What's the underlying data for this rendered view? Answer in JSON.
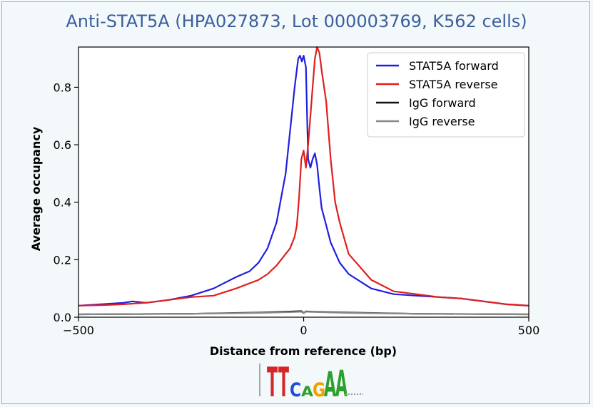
{
  "chart_data": {
    "type": "line",
    "title": "Anti-STAT5A (HPA027873, Lot 000003769, K562 cells)",
    "xlabel": "Distance from reference (bp)",
    "ylabel": "Average occupancy",
    "xlim": [
      -500,
      500
    ],
    "ylim": [
      0,
      0.94
    ],
    "xticks": [
      -500,
      0,
      500
    ],
    "yticks": [
      0.0,
      0.2,
      0.4,
      0.6,
      0.8
    ],
    "xtick_labels": [
      "−500",
      "0",
      "500"
    ],
    "ytick_labels": [
      "0.0",
      "0.2",
      "0.4",
      "0.6",
      "0.8"
    ],
    "grid": false,
    "legend_position": "top-right",
    "series": [
      {
        "name": "STAT5A forward",
        "color": "#1f1fe0",
        "x": [
          -500,
          -450,
          -400,
          -380,
          -350,
          -300,
          -250,
          -200,
          -150,
          -120,
          -100,
          -80,
          -60,
          -40,
          -30,
          -20,
          -12,
          -8,
          -4,
          0,
          5,
          10,
          15,
          20,
          25,
          30,
          35,
          40,
          50,
          60,
          80,
          100,
          130,
          150,
          200,
          250,
          300,
          350,
          400,
          450,
          500
        ],
        "y": [
          0.04,
          0.045,
          0.05,
          0.055,
          0.05,
          0.06,
          0.075,
          0.1,
          0.14,
          0.16,
          0.19,
          0.24,
          0.33,
          0.5,
          0.65,
          0.8,
          0.9,
          0.91,
          0.89,
          0.91,
          0.87,
          0.55,
          0.52,
          0.55,
          0.57,
          0.53,
          0.45,
          0.38,
          0.32,
          0.26,
          0.19,
          0.15,
          0.12,
          0.1,
          0.08,
          0.075,
          0.07,
          0.065,
          0.055,
          0.045,
          0.04
        ]
      },
      {
        "name": "STAT5A reverse",
        "color": "#e01f1f",
        "x": [
          -500,
          -450,
          -400,
          -350,
          -300,
          -250,
          -200,
          -150,
          -100,
          -80,
          -60,
          -40,
          -30,
          -20,
          -15,
          -10,
          -5,
          0,
          5,
          10,
          15,
          20,
          25,
          30,
          35,
          40,
          50,
          60,
          70,
          80,
          100,
          150,
          200,
          250,
          300,
          350,
          400,
          450,
          500
        ],
        "y": [
          0.04,
          0.042,
          0.045,
          0.05,
          0.06,
          0.07,
          0.075,
          0.1,
          0.13,
          0.15,
          0.18,
          0.22,
          0.24,
          0.28,
          0.32,
          0.42,
          0.55,
          0.58,
          0.52,
          0.6,
          0.7,
          0.8,
          0.9,
          0.94,
          0.92,
          0.86,
          0.75,
          0.55,
          0.4,
          0.33,
          0.22,
          0.13,
          0.09,
          0.08,
          0.07,
          0.065,
          0.055,
          0.045,
          0.04
        ]
      },
      {
        "name": "IgG forward",
        "color": "#111111",
        "x": [
          -500,
          -250,
          -100,
          -20,
          -5,
          0,
          5,
          20,
          100,
          250,
          500
        ],
        "y": [
          0.01,
          0.012,
          0.016,
          0.02,
          0.021,
          0.015,
          0.02,
          0.019,
          0.016,
          0.012,
          0.01
        ]
      },
      {
        "name": "IgG reverse",
        "color": "#888888",
        "x": [
          -500,
          -250,
          -100,
          -20,
          -5,
          0,
          5,
          20,
          100,
          250,
          500
        ],
        "y": [
          0.01,
          0.012,
          0.015,
          0.018,
          0.019,
          0.014,
          0.019,
          0.018,
          0.015,
          0.012,
          0.01
        ]
      }
    ]
  },
  "motif": {
    "letters": [
      {
        "ch": "T",
        "color": "#d62728"
      },
      {
        "ch": "T",
        "color": "#d62728"
      },
      {
        "ch": "C",
        "color": "#1f4fd6"
      },
      {
        "ch": "A",
        "color": "#2ca02c"
      },
      {
        "ch": "G",
        "color": "#f0a000"
      },
      {
        "ch": "A",
        "color": "#2ca02c"
      },
      {
        "ch": "A",
        "color": "#2ca02c"
      }
    ]
  }
}
